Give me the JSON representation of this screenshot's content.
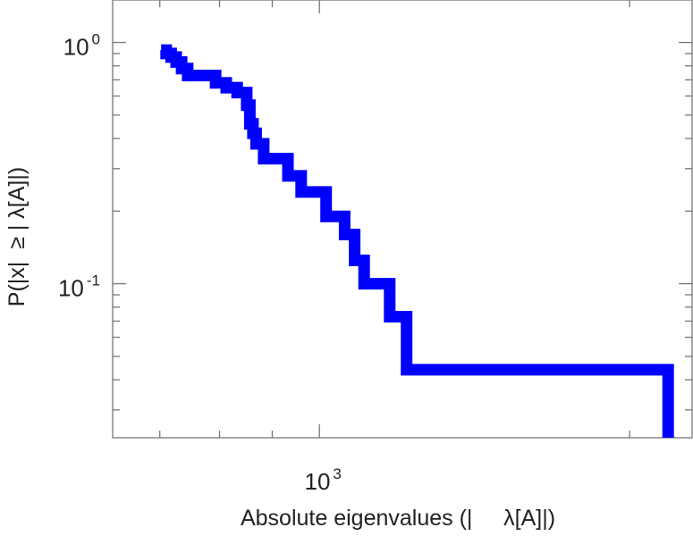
{
  "chart_data": {
    "type": "line",
    "title": "",
    "xlabel": "Absolute eigenvalues (|     λ[A]|)",
    "ylabel": "P(|x|  ≥ | λ[A]|)",
    "xscale": "log",
    "yscale": "log",
    "xlim": [
      630,
      2300
    ],
    "ylim": [
      0.023,
      1.5
    ],
    "grid": false,
    "x_ticks": [
      {
        "base": "10",
        "exp": "3",
        "value": 1000
      }
    ],
    "y_ticks": [
      {
        "base": "10",
        "exp": "0",
        "value": 1
      },
      {
        "base": "10",
        "exp": "-1",
        "value": 0.1
      }
    ],
    "series": [
      {
        "color": "#0000ff",
        "style": "step",
        "points": [
          [
            702,
            0.93
          ],
          [
            710,
            0.93
          ],
          [
            710,
            0.9
          ],
          [
            718,
            0.9
          ],
          [
            718,
            0.87
          ],
          [
            726,
            0.87
          ],
          [
            726,
            0.83
          ],
          [
            735,
            0.83
          ],
          [
            735,
            0.78
          ],
          [
            745,
            0.78
          ],
          [
            745,
            0.73
          ],
          [
            793,
            0.73
          ],
          [
            793,
            0.68
          ],
          [
            812,
            0.68
          ],
          [
            812,
            0.65
          ],
          [
            832,
            0.65
          ],
          [
            832,
            0.62
          ],
          [
            850,
            0.62
          ],
          [
            850,
            0.55
          ],
          [
            856,
            0.55
          ],
          [
            856,
            0.46
          ],
          [
            862,
            0.46
          ],
          [
            862,
            0.42
          ],
          [
            868,
            0.42
          ],
          [
            868,
            0.38
          ],
          [
            883,
            0.38
          ],
          [
            883,
            0.33
          ],
          [
            932,
            0.33
          ],
          [
            932,
            0.28
          ],
          [
            960,
            0.28
          ],
          [
            960,
            0.24
          ],
          [
            1015,
            0.24
          ],
          [
            1015,
            0.19
          ],
          [
            1058,
            0.19
          ],
          [
            1058,
            0.16
          ],
          [
            1082,
            0.16
          ],
          [
            1082,
            0.125
          ],
          [
            1105,
            0.125
          ],
          [
            1105,
            0.1
          ],
          [
            1170,
            0.1
          ],
          [
            1170,
            0.073
          ],
          [
            1215,
            0.073
          ],
          [
            1215,
            0.044
          ],
          [
            2180,
            0.044
          ],
          [
            2180,
            0.023
          ]
        ]
      }
    ]
  }
}
